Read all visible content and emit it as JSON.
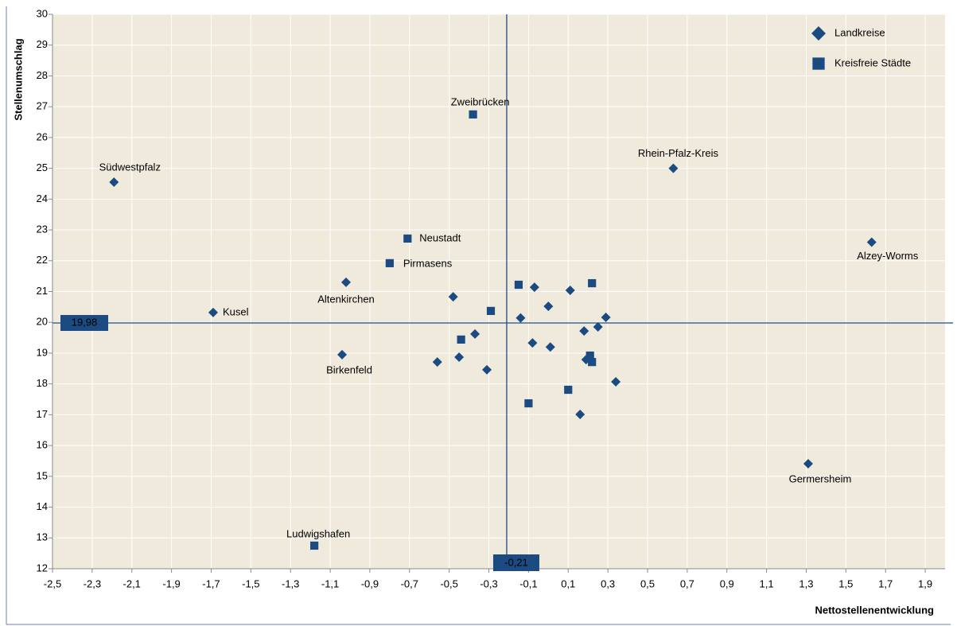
{
  "chart_data": {
    "type": "scatter",
    "x_label": "Nettostellenentwicklung",
    "y_label": "Stellenumschlag",
    "xlim": [
      -2.5,
      2.0
    ],
    "ylim": [
      12,
      30
    ],
    "xticks": [
      {
        "value": -2.5,
        "label": "-2,5"
      },
      {
        "value": -2.3,
        "label": "-2,3"
      },
      {
        "value": -2.1,
        "label": "-2,1"
      },
      {
        "value": -1.9,
        "label": "-1,9"
      },
      {
        "value": -1.7,
        "label": "-1,7"
      },
      {
        "value": -1.5,
        "label": "-1,5"
      },
      {
        "value": -1.3,
        "label": "-1,3"
      },
      {
        "value": -1.1,
        "label": "-1,1"
      },
      {
        "value": -0.9,
        "label": "-0,9"
      },
      {
        "value": -0.7,
        "label": "-0,7"
      },
      {
        "value": -0.5,
        "label": "-0,5"
      },
      {
        "value": -0.3,
        "label": "-0,3"
      },
      {
        "value": -0.1,
        "label": "-0,1"
      },
      {
        "value": 0.1,
        "label": "0,1"
      },
      {
        "value": 0.3,
        "label": "0,3"
      },
      {
        "value": 0.5,
        "label": "0,5"
      },
      {
        "value": 0.7,
        "label": "0,7"
      },
      {
        "value": 0.9,
        "label": "0,9"
      },
      {
        "value": 1.1,
        "label": "1,1"
      },
      {
        "value": 1.3,
        "label": "1,3"
      },
      {
        "value": 1.5,
        "label": "1,5"
      },
      {
        "value": 1.7,
        "label": "1,7"
      },
      {
        "value": 1.9,
        "label": "1,9"
      }
    ],
    "yticks": [
      12,
      13,
      14,
      15,
      16,
      17,
      18,
      19,
      20,
      21,
      22,
      23,
      24,
      25,
      26,
      27,
      28,
      29,
      30
    ],
    "grid": true,
    "legend": "top-right",
    "reference_lines": {
      "x": {
        "value": -0.21,
        "label": "-0,21"
      },
      "y": {
        "value": 19.98,
        "label": "19,98"
      }
    },
    "series": [
      {
        "name": "Landkreise",
        "color": "#1c4b82",
        "marker": "diamond",
        "x": [
          -2.19,
          0.63,
          1.63,
          -1.69,
          -1.02,
          -1.04,
          1.31,
          -0.48,
          -0.07,
          0.11,
          0.0,
          -0.14,
          0.29,
          0.25,
          0.18,
          -0.37,
          -0.08,
          0.01,
          -0.56,
          -0.45,
          -0.31,
          0.19,
          0.34,
          0.16
        ],
        "y": [
          24.55,
          25.0,
          22.6,
          20.32,
          21.3,
          18.95,
          15.41,
          20.83,
          21.14,
          21.04,
          20.52,
          20.14,
          20.16,
          19.85,
          19.72,
          19.62,
          19.33,
          19.2,
          18.71,
          18.87,
          18.46,
          18.79,
          18.07,
          17.01
        ],
        "labels": [
          "Südwestpfalz",
          "Rhein-Pfalz-Kreis",
          "Alzey-Worms",
          "Kusel",
          "Altenkirchen",
          "Birkenfeld",
          "Germersheim",
          null,
          null,
          null,
          null,
          null,
          null,
          null,
          null,
          null,
          null,
          null,
          null,
          null,
          null,
          null,
          null,
          null
        ]
      },
      {
        "name": "Kreisfreie Städte",
        "color": "#1c4b82",
        "marker": "square",
        "x": [
          -0.38,
          -0.71,
          -0.8,
          -1.18,
          -0.15,
          0.22,
          -0.29,
          -0.44,
          0.21,
          0.22,
          0.1,
          -0.1
        ],
        "y": [
          26.75,
          22.72,
          21.92,
          12.75,
          21.22,
          21.27,
          20.37,
          19.44,
          18.92,
          18.71,
          17.81,
          17.37
        ],
        "labels": [
          "Zweibrücken",
          "Neustadt",
          "Pirmasens",
          "Ludwigshafen",
          null,
          null,
          null,
          null,
          null,
          null,
          null,
          null
        ]
      }
    ]
  }
}
